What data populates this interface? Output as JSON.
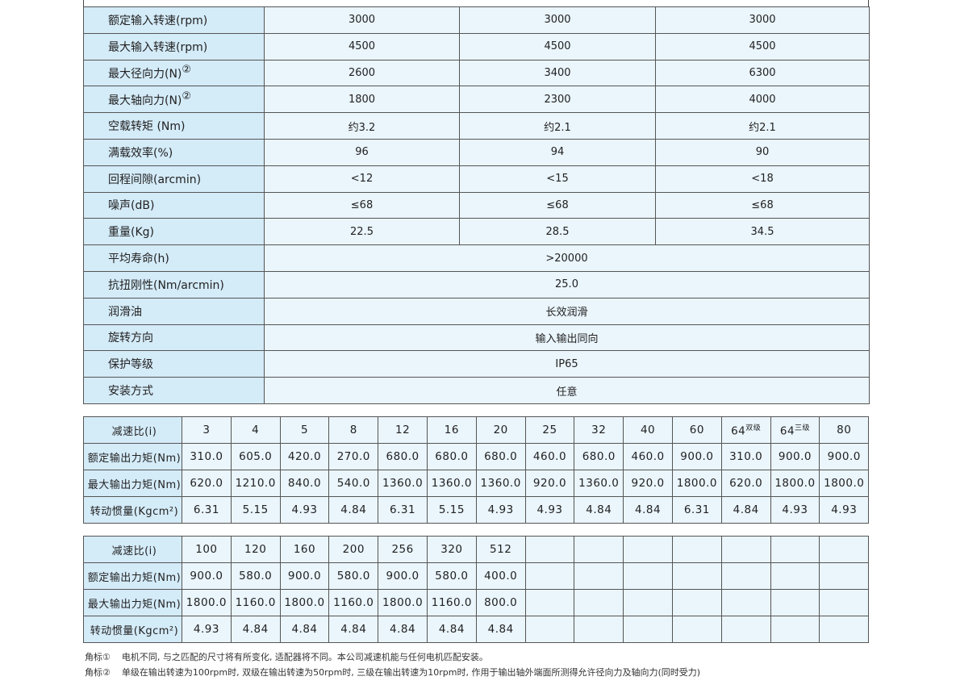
{
  "specs": {
    "rows": [
      {
        "label": "额定输入转速(rpm)",
        "values": [
          "3000",
          "3000",
          "3000"
        ]
      },
      {
        "label": "最大输入转速(rpm)",
        "values": [
          "4500",
          "4500",
          "4500"
        ]
      },
      {
        "label": "最大径向力(N)",
        "note": "②",
        "values": [
          "2600",
          "3400",
          "6300"
        ]
      },
      {
        "label": "最大轴向力(N)",
        "note": "②",
        "values": [
          "1800",
          "2300",
          "4000"
        ]
      },
      {
        "label": "空载转矩 (Nm)",
        "values": [
          "约3.2",
          "约2.1",
          "约2.1"
        ]
      },
      {
        "label": "满载效率(%)",
        "values": [
          "96",
          "94",
          "90"
        ]
      },
      {
        "label": "回程间隙(arcmin)",
        "values": [
          "<12",
          "<15",
          "<18"
        ]
      },
      {
        "label": "噪声(dB)",
        "values": [
          "≤68",
          "≤68",
          "≤68"
        ]
      },
      {
        "label": "重量(Kg)",
        "values": [
          "22.5",
          "28.5",
          "34.5"
        ]
      },
      {
        "label": "平均寿命(h)",
        "values": [
          ">20000"
        ]
      },
      {
        "label": "抗扭刚性(Nm/arcmin)",
        "values": [
          "25.0"
        ]
      },
      {
        "label": "润滑油",
        "values": [
          "长效润滑"
        ]
      },
      {
        "label": "旋转方向",
        "values": [
          "输入输出同向"
        ]
      },
      {
        "label": "保护等级",
        "values": [
          "IP65"
        ]
      },
      {
        "label": "安装方式",
        "values": [
          "任意"
        ]
      }
    ]
  },
  "ratio_tables": [
    {
      "labels": [
        "减速比(i)",
        "额定输出力矩(Nm)",
        "最大输出力矩(Nm)",
        "转动惯量(Kgcm²)"
      ],
      "ratios": [
        "3",
        "4",
        "5",
        "8",
        "12",
        "16",
        "20",
        "25",
        "32",
        "40",
        "60",
        "64",
        "64",
        "80"
      ],
      "ratio_notes": [
        "",
        "",
        "",
        "",
        "",
        "",
        "",
        "",
        "",
        "",
        "",
        "双级",
        "三级",
        ""
      ],
      "rated_torque": [
        "310.0",
        "605.0",
        "420.0",
        "270.0",
        "680.0",
        "680.0",
        "680.0",
        "460.0",
        "680.0",
        "460.0",
        "900.0",
        "310.0",
        "900.0",
        "900.0"
      ],
      "max_torque": [
        "620.0",
        "1210.0",
        "840.0",
        "540.0",
        "1360.0",
        "1360.0",
        "1360.0",
        "920.0",
        "1360.0",
        "920.0",
        "1800.0",
        "620.0",
        "1800.0",
        "1800.0"
      ],
      "inertia": [
        "6.31",
        "5.15",
        "4.93",
        "4.84",
        "6.31",
        "5.15",
        "4.93",
        "4.93",
        "4.84",
        "4.84",
        "6.31",
        "4.84",
        "4.93",
        "4.93"
      ]
    },
    {
      "labels": [
        "减速比(i)",
        "额定输出力矩(Nm)",
        "最大输出力矩(Nm)",
        "转动惯量(Kgcm²)"
      ],
      "ratios": [
        "100",
        "120",
        "160",
        "200",
        "256",
        "320",
        "512",
        "",
        "",
        "",
        "",
        "",
        "",
        ""
      ],
      "ratio_notes": [
        "",
        "",
        "",
        "",
        "",
        "",
        "",
        "",
        "",
        "",
        "",
        "",
        "",
        ""
      ],
      "rated_torque": [
        "900.0",
        "580.0",
        "900.0",
        "580.0",
        "900.0",
        "580.0",
        "400.0",
        "",
        "",
        "",
        "",
        "",
        "",
        ""
      ],
      "max_torque": [
        "1800.0",
        "1160.0",
        "1800.0",
        "1160.0",
        "1800.0",
        "1160.0",
        "800.0",
        "",
        "",
        "",
        "",
        "",
        "",
        ""
      ],
      "inertia": [
        "4.93",
        "4.84",
        "4.84",
        "4.84",
        "4.84",
        "4.84",
        "4.84",
        "",
        "",
        "",
        "",
        "",
        "",
        ""
      ]
    }
  ],
  "notes": [
    {
      "tag": "角标①",
      "text": "电机不同, 与之匹配的尺寸将有所变化, 适配器将不同。本公司减速机能与任何电机匹配安装。"
    },
    {
      "tag": "角标②",
      "text": "单级在输出转速为100rpm时, 双级在输出转速为50rpm时, 三级在输出转速为10rpm时, 作用于输出轴外端面所测得允许径向力及轴向力(同时受力)"
    }
  ],
  "colors": {
    "label_bg": "#d4ebf8",
    "cell_bg": "#eaf5fc",
    "border": "#555555"
  }
}
